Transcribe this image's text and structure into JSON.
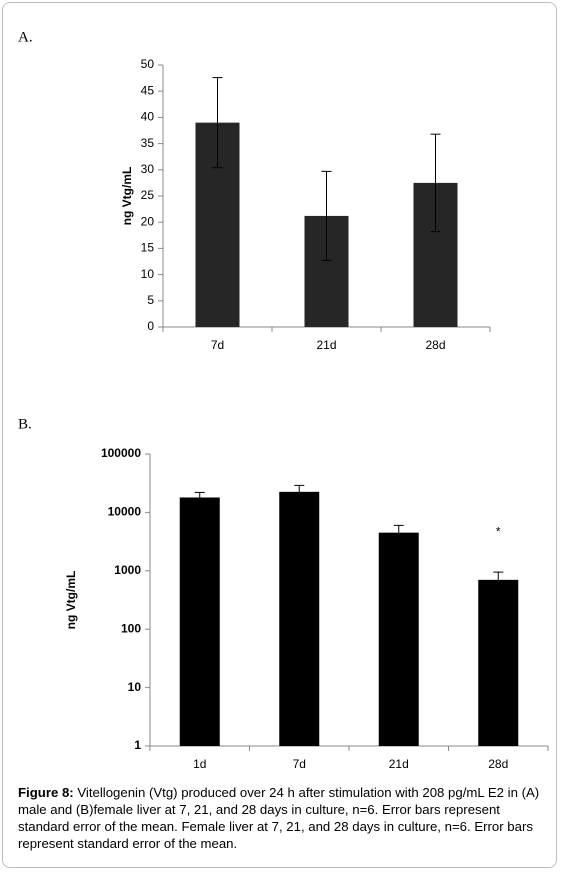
{
  "chart_data": [
    {
      "type": "bar",
      "panel_label": "A.",
      "ylabel": "ng Vtg/mL",
      "categories": [
        "7d",
        "21d",
        "28d"
      ],
      "values": [
        39,
        21.2,
        27.5
      ],
      "errors": [
        8.6,
        8.5,
        9.3
      ],
      "error_style": "both",
      "color": "#262626",
      "ylim": [
        0,
        50
      ],
      "yticks": [
        0,
        5,
        10,
        15,
        20,
        25,
        30,
        35,
        40,
        45,
        50
      ],
      "log_scale": false,
      "grid": false
    },
    {
      "type": "bar",
      "panel_label": "B.",
      "ylabel": "ng Vtg/mL",
      "categories": [
        "1d",
        "7d",
        "21d",
        "28d"
      ],
      "values": [
        18000,
        22500,
        4500,
        700
      ],
      "errors": [
        4000,
        6500,
        1500,
        250
      ],
      "error_style": "upper",
      "color": "#000000",
      "marker_labels": [
        null,
        null,
        null,
        "*"
      ],
      "ylim": [
        1,
        100000
      ],
      "yticks": [
        1,
        10,
        100,
        1000,
        10000,
        100000
      ],
      "log_scale": true,
      "grid": false
    }
  ],
  "caption": {
    "label": "Figure 8:",
    "text": "Vitellogenin (Vtg) produced over 24 h after stimulation with 208 pg/mL E2 in (A) male and (B)female liver at 7, 21, and 28 days in culture, n=6. Error bars represent standard error of the mean. Female liver at 7, 21, and 28 days in culture, n=6. Error bars represent standard error of the mean."
  }
}
